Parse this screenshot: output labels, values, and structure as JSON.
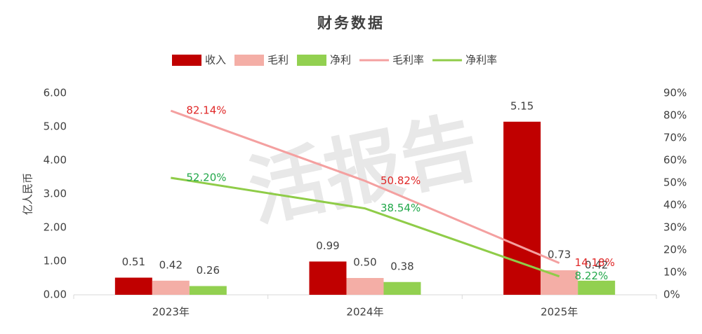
{
  "chart_data": {
    "type": "bar",
    "title": "财务数据",
    "watermark": "活报告",
    "y_label": "亿人民币",
    "categories": [
      "2023年",
      "2024年",
      "2025年"
    ],
    "series": [
      {
        "name": "收入",
        "type": "bar",
        "color": "#c00000",
        "values": [
          0.51,
          0.99,
          5.15
        ],
        "value_labels": [
          "0.51",
          "0.99",
          "5.15"
        ]
      },
      {
        "name": "毛利",
        "type": "bar",
        "color": "#f4aea6",
        "values": [
          0.42,
          0.5,
          0.73
        ],
        "value_labels": [
          "0.42",
          "0.50",
          "0.73"
        ]
      },
      {
        "name": "净利",
        "type": "bar",
        "color": "#92d050",
        "values": [
          0.26,
          0.38,
          0.42
        ],
        "value_labels": [
          "0.26",
          "0.38",
          "0.42"
        ]
      },
      {
        "name": "毛利率",
        "type": "line",
        "axis": "y2",
        "color": "#f4a0a0",
        "label_color": "#e02828",
        "values": [
          82.14,
          50.82,
          14.18
        ],
        "value_labels": [
          "82.14%",
          "50.82%",
          "14.18%"
        ]
      },
      {
        "name": "净利率",
        "type": "line",
        "axis": "y2",
        "color": "#8fcc48",
        "label_color": "#22a84a",
        "values": [
          52.2,
          38.54,
          8.22
        ],
        "value_labels": [
          "52.20%",
          "38.54%",
          "8.22%"
        ]
      }
    ],
    "ylim": [
      0,
      6
    ],
    "yticks": [
      {
        "value": 0,
        "label": "0.00"
      },
      {
        "value": 1,
        "label": "1.00"
      },
      {
        "value": 2,
        "label": "2.00"
      },
      {
        "value": 3,
        "label": "3.00"
      },
      {
        "value": 4,
        "label": "4.00"
      },
      {
        "value": 5,
        "label": "5.00"
      },
      {
        "value": 6,
        "label": "6.00"
      }
    ],
    "y2lim": [
      0,
      90
    ],
    "y2ticks": [
      {
        "value": 0,
        "label": "0%"
      },
      {
        "value": 10,
        "label": "10%"
      },
      {
        "value": 20,
        "label": "20%"
      },
      {
        "value": 30,
        "label": "30%"
      },
      {
        "value": 40,
        "label": "40%"
      },
      {
        "value": 50,
        "label": "50%"
      },
      {
        "value": 60,
        "label": "60%"
      },
      {
        "value": 70,
        "label": "70%"
      },
      {
        "value": 80,
        "label": "80%"
      },
      {
        "value": 90,
        "label": "90%"
      }
    ],
    "grid": false
  }
}
